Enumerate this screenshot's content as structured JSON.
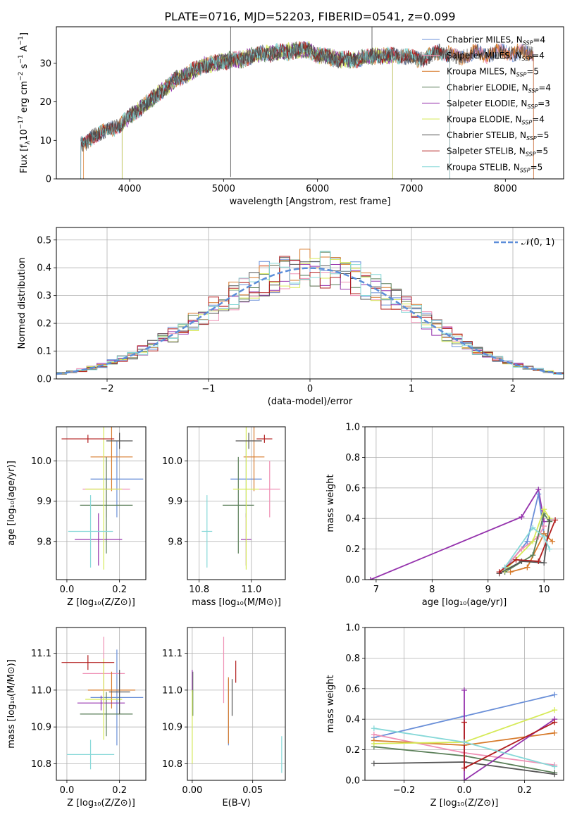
{
  "figure_title": "PLATE=0716, MJD=52203, FIBERID=0541, z=0.099",
  "colors": {
    "Chabrier MILES": "#6a8fd8",
    "Salpeter MILES": "#ef8fb4",
    "Kroupa MILES": "#d77a2a",
    "Chabrier ELODIE": "#5a7f58",
    "Salpeter ELODIE": "#9533ad",
    "Kroupa ELODIE": "#d6ea58",
    "Chabrier STELIB": "#555555",
    "Salpeter STELIB": "#b21e1e",
    "Kroupa STELIB": "#86d8d8",
    "normal": "#5b8dd9",
    "data": "#444444"
  },
  "chart_data": [
    {
      "id": "spectrum",
      "type": "line",
      "xlabel": "wavelength [Angstrom, rest frame]",
      "ylabel_parts": [
        "Flux [f",
        "λ",
        "10",
        "−17",
        " erg cm",
        "−2",
        " s",
        "−1",
        " A",
        "−1",
        "]"
      ],
      "xlim": [
        3220,
        8620
      ],
      "ylim": [
        0,
        39.5
      ],
      "xticks": [
        4000,
        5000,
        6000,
        7000,
        8000
      ],
      "yticks": [
        0,
        10,
        20,
        30
      ],
      "continuum": [
        [
          3480,
          9
        ],
        [
          3530,
          9
        ],
        [
          3600,
          11
        ],
        [
          3700,
          12
        ],
        [
          3800,
          13
        ],
        [
          3900,
          14
        ],
        [
          3980,
          16
        ],
        [
          4100,
          18
        ],
        [
          4200,
          20
        ],
        [
          4300,
          22
        ],
        [
          4400,
          24
        ],
        [
          4500,
          26
        ],
        [
          4600,
          27
        ],
        [
          4700,
          28.5
        ],
        [
          4800,
          29.5
        ],
        [
          4900,
          30
        ],
        [
          5000,
          30.5
        ],
        [
          5100,
          31
        ],
        [
          5200,
          31
        ],
        [
          5300,
          32
        ],
        [
          5400,
          32.5
        ],
        [
          5500,
          32.5
        ],
        [
          5600,
          33
        ],
        [
          5700,
          33
        ],
        [
          5800,
          33.5
        ],
        [
          5900,
          33.5
        ],
        [
          6000,
          32
        ],
        [
          6100,
          32
        ],
        [
          6200,
          31
        ],
        [
          6300,
          31
        ],
        [
          6400,
          31
        ],
        [
          6500,
          31.5
        ],
        [
          6600,
          32
        ],
        [
          6700,
          32
        ],
        [
          6800,
          32
        ],
        [
          6900,
          32
        ],
        [
          7000,
          31.5
        ],
        [
          7100,
          31
        ],
        [
          7200,
          32
        ],
        [
          7300,
          33
        ],
        [
          7400,
          32.5
        ],
        [
          7500,
          31.5
        ],
        [
          7600,
          32
        ],
        [
          7700,
          33
        ],
        [
          7800,
          32
        ],
        [
          7900,
          33
        ],
        [
          8000,
          33
        ],
        [
          8100,
          32.5
        ],
        [
          8200,
          33
        ],
        [
          8300,
          32.5
        ]
      ],
      "legend": [
        {
          "label": "Chabrier MILES",
          "ssp": "4"
        },
        {
          "label": "Salpeter MILES",
          "ssp": "4"
        },
        {
          "label": "Kroupa MILES",
          "ssp": "5"
        },
        {
          "label": "Chabrier ELODIE",
          "ssp": "4"
        },
        {
          "label": "Salpeter ELODIE",
          "ssp": "3"
        },
        {
          "label": "Kroupa ELODIE",
          "ssp": "4"
        },
        {
          "label": "Chabrier STELIB",
          "ssp": "5"
        },
        {
          "label": "Salpeter STELIB",
          "ssp": "5"
        },
        {
          "label": "Kroupa STELIB",
          "ssp": "5"
        }
      ],
      "legend_placement": "upper right",
      "grid": false
    },
    {
      "id": "residuals",
      "type": "histogram",
      "xlabel": "(data-model)/error",
      "ylabel": "Normed distribution",
      "xlim": [
        -2.5,
        2.5
      ],
      "ylim": [
        0,
        0.545
      ],
      "xticks": [
        -2,
        -1,
        0,
        1,
        2
      ],
      "yticks": [
        0.0,
        0.1,
        0.2,
        0.3,
        0.4,
        0.5
      ],
      "legend_label": "𝒩(0, 1)",
      "legend_placement": "upper right",
      "grid": true
    },
    {
      "id": "age_vs_Z",
      "type": "errorbar",
      "xlabel": "Z [log₁₀(Z/Z⊙)]",
      "ylabel": "age  [log₁₀(age/yr)]",
      "xlim": [
        -0.04,
        0.3
      ],
      "ylim": [
        9.705,
        10.085
      ],
      "xticks": [
        0.0,
        0.2
      ],
      "yticks": [
        9.8,
        9.9,
        10.0
      ],
      "grid": true,
      "points": [
        {
          "model": "Chabrier MILES",
          "x": 0.19,
          "xerr": 0.1,
          "y": 9.955,
          "yerr": 0.095
        },
        {
          "model": "Salpeter MILES",
          "x": 0.15,
          "xerr": 0.09,
          "y": 9.93,
          "yerr": 0.07
        },
        {
          "model": "Kroupa MILES",
          "x": 0.17,
          "xerr": 0.08,
          "y": 10.01,
          "yerr": 0.085
        },
        {
          "model": "Chabrier ELODIE",
          "x": 0.15,
          "xerr": 0.1,
          "y": 9.89,
          "yerr": 0.12
        },
        {
          "model": "Salpeter ELODIE",
          "x": 0.12,
          "xerr": 0.09,
          "y": 9.805,
          "yerr": 0.065
        },
        {
          "model": "Kroupa ELODIE",
          "x": 0.14,
          "xerr": 0.07,
          "y": 9.93,
          "yerr": 0.2
        },
        {
          "model": "Chabrier STELIB",
          "x": 0.2,
          "xerr": 0.05,
          "y": 10.05,
          "yerr": 0.02
        },
        {
          "model": "Salpeter STELIB",
          "x": 0.08,
          "xerr": 0.1,
          "y": 10.055,
          "yerr": 0.01
        },
        {
          "model": "Kroupa STELIB",
          "x": 0.09,
          "xerr": 0.085,
          "y": 9.825,
          "yerr": 0.09
        }
      ]
    },
    {
      "id": "age_vs_mass",
      "type": "errorbar",
      "xlabel": "mass [log₁₀(M/M⊙)]",
      "ylabel": "",
      "xlim": [
        10.755,
        11.13
      ],
      "ylim": [
        9.705,
        10.085
      ],
      "xticks": [
        10.8,
        11.0
      ],
      "yticks": [
        9.8,
        9.9,
        10.0
      ],
      "grid": true,
      "points": [
        {
          "model": "Chabrier MILES",
          "x": 10.98,
          "xerr": 0.06,
          "y": 9.955,
          "yerr": 0.095
        },
        {
          "model": "Salpeter MILES",
          "x": 11.07,
          "xerr": 0.04,
          "y": 9.93,
          "yerr": 0.07
        },
        {
          "model": "Kroupa MILES",
          "x": 11.01,
          "xerr": 0.04,
          "y": 10.01,
          "yerr": 0.085
        },
        {
          "model": "Chabrier ELODIE",
          "x": 10.95,
          "xerr": 0.06,
          "y": 9.89,
          "yerr": 0.12
        },
        {
          "model": "Salpeter ELODIE",
          "x": 10.98,
          "xerr": 0.02,
          "y": 9.805,
          "yerr": 0.065
        },
        {
          "model": "Kroupa ELODIE",
          "x": 10.98,
          "xerr": 0.05,
          "y": 9.93,
          "yerr": 0.2
        },
        {
          "model": "Chabrier STELIB",
          "x": 10.99,
          "xerr": 0.05,
          "y": 10.05,
          "yerr": 0.02
        },
        {
          "model": "Salpeter STELIB",
          "x": 11.05,
          "xerr": 0.03,
          "y": 10.055,
          "yerr": 0.01
        },
        {
          "model": "Kroupa STELIB",
          "x": 10.83,
          "xerr": 0.02,
          "y": 9.825,
          "yerr": 0.09
        }
      ]
    },
    {
      "id": "weight_vs_age",
      "type": "line",
      "xlabel": "age  [log₁₀(age/yr)]",
      "ylabel": "mass weight",
      "xlim": [
        6.8,
        10.35
      ],
      "ylim": [
        0,
        1
      ],
      "xticks": [
        7,
        8,
        9,
        10
      ],
      "yticks": [
        0.0,
        0.2,
        0.4,
        0.6,
        0.8,
        1.0
      ],
      "grid": true,
      "series": [
        {
          "model": "Salpeter ELODIE",
          "x": [
            6.9,
            9.6,
            9.9,
            10.0
          ],
          "y": [
            0.0,
            0.41,
            0.59,
            0.38
          ]
        },
        {
          "model": "Chabrier MILES",
          "x": [
            9.3,
            9.7,
            9.9,
            10.0
          ],
          "y": [
            0.07,
            0.25,
            0.56,
            0.3
          ]
        },
        {
          "model": "Salpeter MILES",
          "x": [
            9.3,
            9.6,
            9.9,
            10.0
          ],
          "y": [
            0.08,
            0.2,
            0.28,
            0.35
          ]
        },
        {
          "model": "Kroupa MILES",
          "x": [
            9.4,
            9.7,
            10.0,
            10.15
          ],
          "y": [
            0.05,
            0.08,
            0.3,
            0.25
          ]
        },
        {
          "model": "Chabrier ELODIE",
          "x": [
            9.3,
            9.8,
            10.0,
            10.1
          ],
          "y": [
            0.05,
            0.16,
            0.43,
            0.38
          ]
        },
        {
          "model": "Kroupa ELODIE",
          "x": [
            9.3,
            9.8,
            10.0,
            10.1
          ],
          "y": [
            0.06,
            0.25,
            0.46,
            0.4
          ]
        },
        {
          "model": "Chabrier STELIB",
          "x": [
            9.2,
            9.6,
            10.0,
            10.1
          ],
          "y": [
            0.04,
            0.12,
            0.11,
            0.39
          ]
        },
        {
          "model": "Salpeter STELIB",
          "x": [
            9.2,
            9.5,
            9.9,
            10.2
          ],
          "y": [
            0.05,
            0.13,
            0.12,
            0.39
          ]
        },
        {
          "model": "Kroupa STELIB",
          "x": [
            9.3,
            9.8,
            10.0,
            10.1
          ],
          "y": [
            0.08,
            0.34,
            0.28,
            0.2
          ]
        }
      ]
    },
    {
      "id": "mass_vs_Z",
      "type": "errorbar",
      "xlabel": "Z [log₁₀(Z/Z⊙)]",
      "ylabel": "mass [log₁₀(M/M⊙)]",
      "xlim": [
        -0.04,
        0.3
      ],
      "ylim": [
        10.755,
        11.17
      ],
      "xticks": [
        0.0,
        0.2
      ],
      "yticks": [
        10.8,
        10.9,
        11.0,
        11.1
      ],
      "grid": true,
      "points": [
        {
          "model": "Chabrier MILES",
          "x": 0.19,
          "xerr": 0.1,
          "y": 10.98,
          "yerr": 0.13
        },
        {
          "model": "Salpeter MILES",
          "x": 0.14,
          "xerr": 0.08,
          "y": 11.045,
          "yerr": 0.1
        },
        {
          "model": "Kroupa MILES",
          "x": 0.17,
          "xerr": 0.09,
          "y": 11.0,
          "yerr": 0.05
        },
        {
          "model": "Chabrier ELODIE",
          "x": 0.15,
          "xerr": 0.1,
          "y": 10.935,
          "yerr": 0.06
        },
        {
          "model": "Salpeter ELODIE",
          "x": 0.13,
          "xerr": 0.09,
          "y": 10.965,
          "yerr": 0.02
        },
        {
          "model": "Kroupa ELODIE",
          "x": 0.14,
          "xerr": 0.07,
          "y": 10.975,
          "yerr": 0.11
        },
        {
          "model": "Chabrier STELIB",
          "x": 0.2,
          "xerr": 0.04,
          "y": 10.995,
          "yerr": 0.06
        },
        {
          "model": "Salpeter STELIB",
          "x": 0.08,
          "xerr": 0.1,
          "y": 11.075,
          "yerr": 0.02
        },
        {
          "model": "Kroupa STELIB",
          "x": 0.09,
          "xerr": 0.09,
          "y": 10.825,
          "yerr": 0.04
        }
      ]
    },
    {
      "id": "mass_vs_ebv",
      "type": "errorbar",
      "xlabel": "E(B-V)",
      "ylabel": "",
      "xlim": [
        -0.004,
        0.077
      ],
      "ylim": [
        10.755,
        11.17
      ],
      "xticks": [
        0.0,
        0.05
      ],
      "yticks": [
        10.8,
        10.9,
        11.0,
        11.1
      ],
      "grid": true,
      "points": [
        {
          "model": "Chabrier MILES",
          "x": 0.03,
          "xerr": 0,
          "y": 10.94,
          "yerr": 0.09
        },
        {
          "model": "Salpeter MILES",
          "x": 0.026,
          "xerr": 0,
          "y": 11.055,
          "yerr": 0.09
        },
        {
          "model": "Kroupa MILES",
          "x": 0.03,
          "xerr": 0,
          "y": 10.945,
          "yerr": 0.09
        },
        {
          "model": "Chabrier ELODIE",
          "x": 0.0005,
          "xerr": 0,
          "y": 10.99,
          "yerr": 0.06
        },
        {
          "model": "Salpeter ELODIE",
          "x": 0.0,
          "xerr": 0,
          "y": 11.025,
          "yerr": 0.03
        },
        {
          "model": "Kroupa ELODIE",
          "x": 0.0,
          "xerr": 0,
          "y": 10.9,
          "yerr": 0.1
        },
        {
          "model": "Chabrier STELIB",
          "x": 0.033,
          "xerr": 0,
          "y": 10.98,
          "yerr": 0.05
        },
        {
          "model": "Salpeter STELIB",
          "x": 0.036,
          "xerr": 0,
          "y": 11.05,
          "yerr": 0.03
        },
        {
          "model": "Kroupa STELIB",
          "x": 0.074,
          "xerr": 0,
          "y": 10.825,
          "yerr": 0.05
        }
      ]
    },
    {
      "id": "weight_vs_Z",
      "type": "line",
      "xlabel": "Z [log₁₀(Z/Z⊙)]",
      "ylabel": "mass weight",
      "xlim": [
        -0.33,
        0.33
      ],
      "ylim": [
        0,
        1
      ],
      "xticks": [
        -0.2,
        0.0,
        0.2
      ],
      "yticks": [
        0.0,
        0.2,
        0.4,
        0.6,
        0.8,
        1.0
      ],
      "grid": true,
      "series": [
        {
          "model": "Chabrier MILES",
          "x": [
            -0.3,
            0.0,
            0.3
          ],
          "y": [
            0.28,
            0.42,
            0.56
          ]
        },
        {
          "model": "Salpeter MILES",
          "x": [
            -0.3,
            0.0,
            0.3
          ],
          "y": [
            0.3,
            0.18,
            0.1
          ]
        },
        {
          "model": "Kroupa MILES",
          "x": [
            -0.3,
            0.0,
            0.3
          ],
          "y": [
            0.26,
            0.23,
            0.31
          ]
        },
        {
          "model": "Chabrier ELODIE",
          "x": [
            -0.3,
            0.0,
            0.3
          ],
          "y": [
            0.22,
            0.16,
            0.05
          ]
        },
        {
          "model": "Salpeter ELODIE",
          "x": [
            0.0,
            0.0,
            0.3
          ],
          "y": [
            0.59,
            0.0,
            0.4
          ]
        },
        {
          "model": "Kroupa ELODIE",
          "x": [
            -0.3,
            0.0,
            0.3
          ],
          "y": [
            0.24,
            0.25,
            0.46
          ]
        },
        {
          "model": "Chabrier STELIB",
          "x": [
            -0.3,
            0.0,
            0.3
          ],
          "y": [
            0.11,
            0.12,
            0.04
          ]
        },
        {
          "model": "Salpeter STELIB",
          "x": [
            0.0,
            0.0,
            0.3
          ],
          "y": [
            0.38,
            0.08,
            0.38
          ]
        },
        {
          "model": "Kroupa STELIB",
          "x": [
            -0.3,
            0.0,
            0.3
          ],
          "y": [
            0.34,
            0.25,
            0.09
          ]
        }
      ]
    }
  ]
}
